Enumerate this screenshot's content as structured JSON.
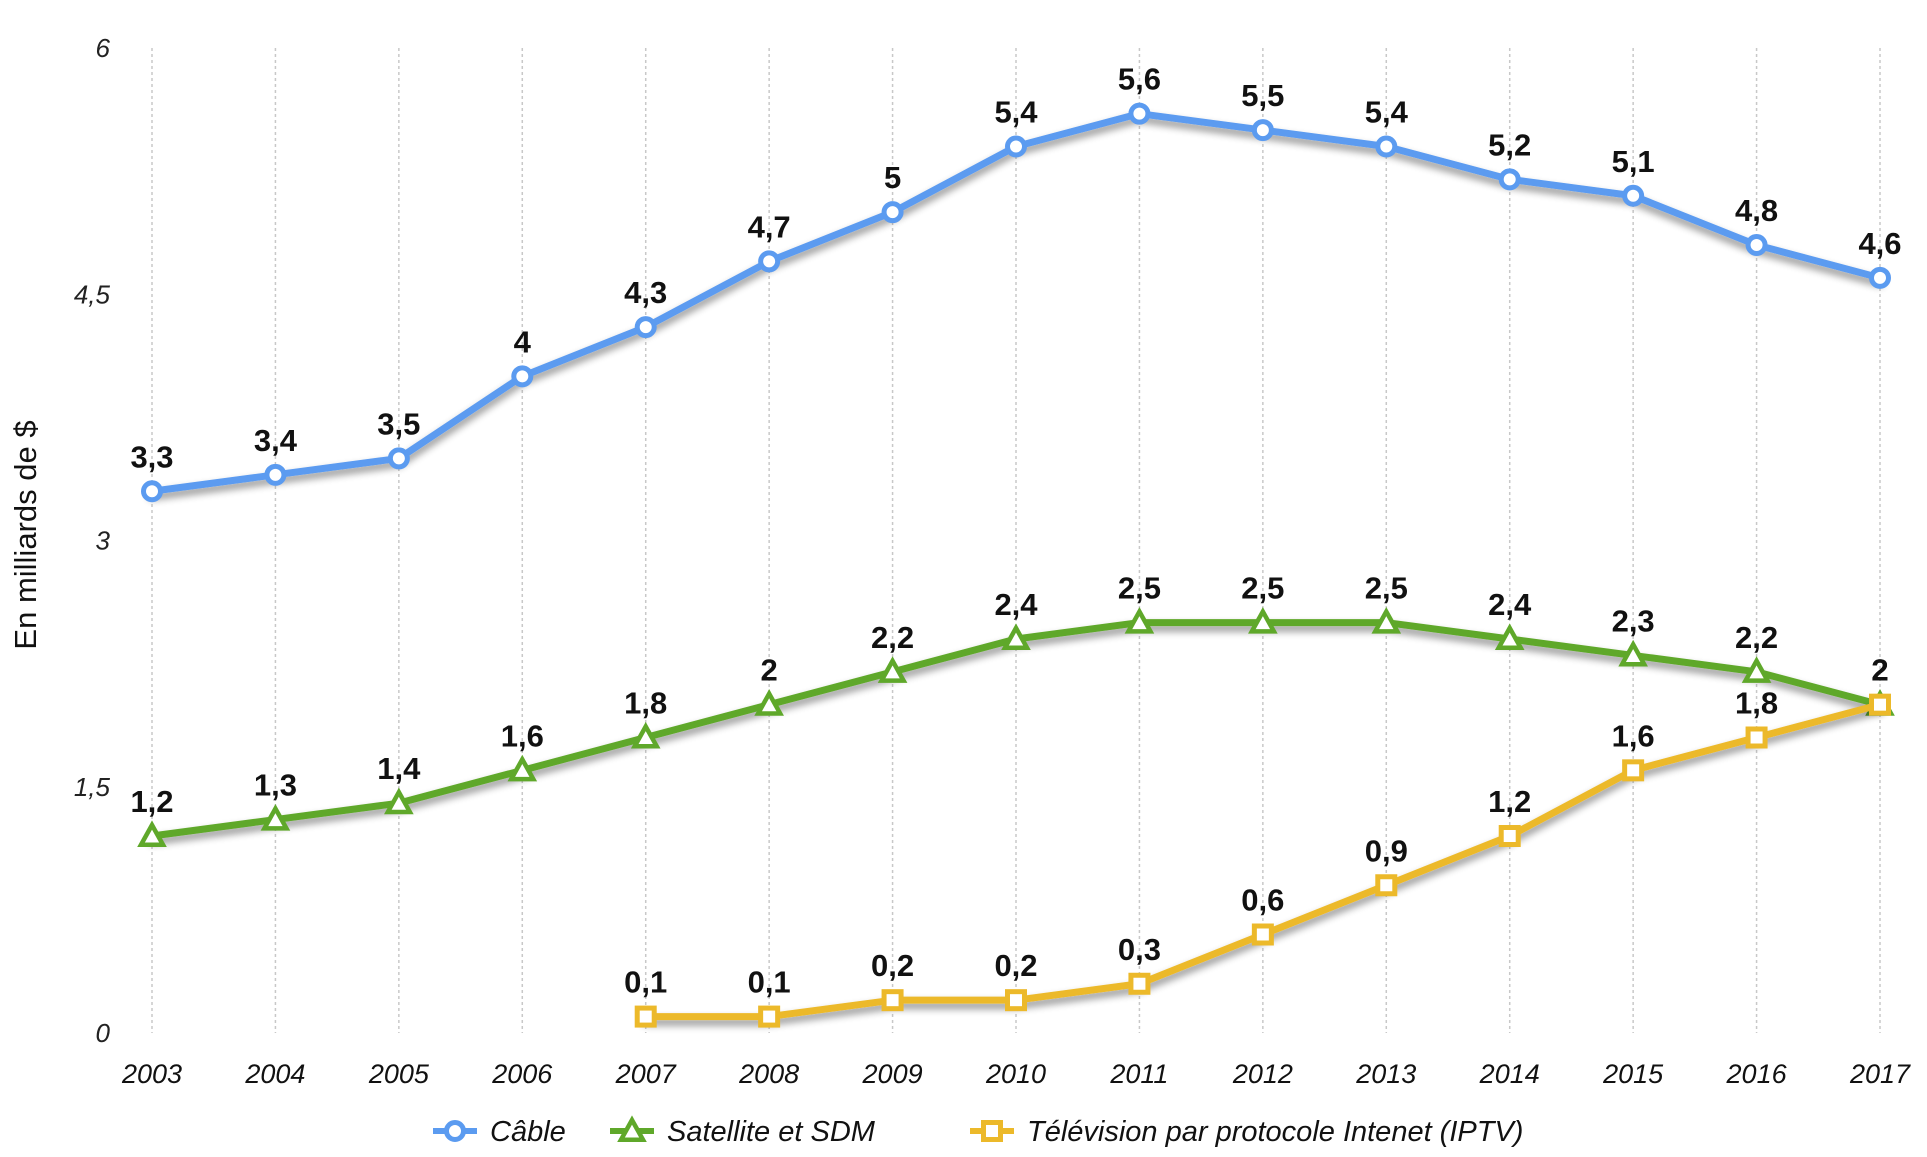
{
  "chart_data": {
    "type": "line",
    "ylabel": "En milliards de $",
    "xlabel": "",
    "ylim": [
      0,
      6
    ],
    "yticks": [
      "0",
      "1,5",
      "3",
      "4,5",
      "6"
    ],
    "ytick_values": [
      0,
      1.5,
      3,
      4.5,
      6
    ],
    "x": [
      "2003",
      "2004",
      "2005",
      "2006",
      "2007",
      "2008",
      "2009",
      "2010",
      "2011",
      "2012",
      "2013",
      "2014",
      "2015",
      "2016",
      "2017"
    ],
    "grid": "vertical",
    "legend_position": "bottom",
    "series": [
      {
        "name": "Câble",
        "color": "#5b9bf0",
        "marker": "circle",
        "values": [
          3.3,
          3.4,
          3.5,
          4,
          4.3,
          4.7,
          5,
          5.4,
          5.6,
          5.5,
          5.4,
          5.2,
          5.1,
          4.8,
          4.6
        ],
        "labels": [
          "3,3",
          "3,4",
          "3,5",
          "4",
          "4,3",
          "4,7",
          "5",
          "5,4",
          "5,6",
          "5,5",
          "5,4",
          "5,2",
          "5,1",
          "4,8",
          "4,6"
        ]
      },
      {
        "name": "Satellite et SDM",
        "color": "#5fa82a",
        "marker": "triangle",
        "values": [
          1.2,
          1.3,
          1.4,
          1.6,
          1.8,
          2,
          2.2,
          2.4,
          2.5,
          2.5,
          2.5,
          2.4,
          2.3,
          2.2,
          2
        ],
        "labels": [
          "1,2",
          "1,3",
          "1,4",
          "1,6",
          "1,8",
          "2",
          "2,2",
          "2,4",
          "2,5",
          "2,5",
          "2,5",
          "2,4",
          "2,3",
          "2,2",
          "2"
        ]
      },
      {
        "name": "Télévision par protocole Intenet (IPTV)",
        "color": "#ecb92a",
        "marker": "square",
        "values": [
          null,
          null,
          null,
          null,
          0.1,
          0.1,
          0.2,
          0.2,
          0.3,
          0.6,
          0.9,
          1.2,
          1.6,
          1.8,
          2
        ],
        "labels": [
          null,
          null,
          null,
          null,
          "0,1",
          "0,1",
          "0,2",
          "0,2",
          "0,3",
          "0,6",
          "0,9",
          "1,2",
          "1,6",
          "1,8",
          "2"
        ]
      }
    ]
  }
}
